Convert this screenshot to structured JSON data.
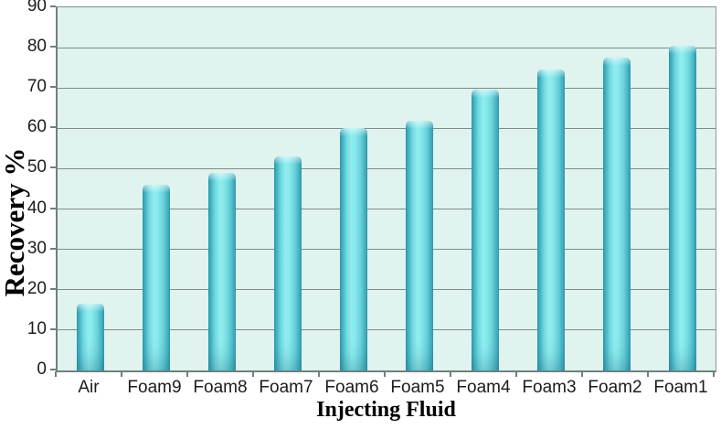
{
  "chart_data": {
    "type": "bar",
    "title": "",
    "xlabel": "Injecting Fluid",
    "ylabel": "Recovery %",
    "categories": [
      "Air",
      "Foam9",
      "Foam8",
      "Foam7",
      "Foam6",
      "Foam5",
      "Foam4",
      "Foam3",
      "Foam2",
      "Foam1"
    ],
    "values": [
      16.5,
      46,
      49,
      53,
      60,
      62,
      69.5,
      74.5,
      77.5,
      80.5
    ],
    "ylim": [
      0,
      90
    ],
    "yticks": [
      0,
      10,
      20,
      30,
      40,
      50,
      60,
      70,
      80,
      90
    ],
    "grid": "horizontal",
    "legend": "none",
    "colors": {
      "bar_center": "#90edf0",
      "bar_edge": "#2d98ac",
      "plot_background": "#e0f3ee",
      "gridline": "#7d8d8c",
      "axis_line": "#6f8080",
      "text": "#1c1c1c",
      "page_background": "#ffffff"
    }
  }
}
